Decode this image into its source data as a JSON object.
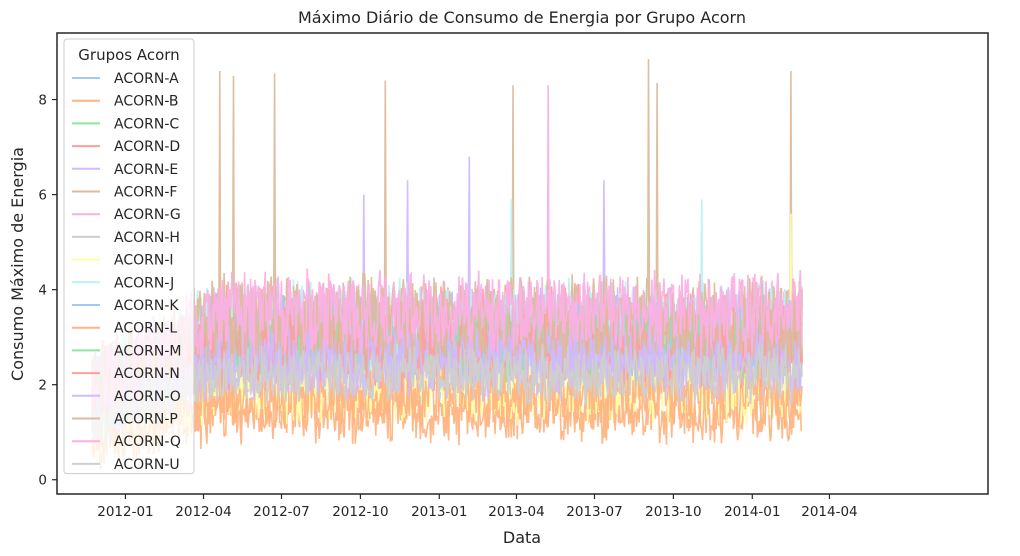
{
  "chart_data": {
    "type": "line",
    "title": "Máximo Diário de Consumo de Energia por Grupo Acorn",
    "xlabel": "Data",
    "ylabel": "Consumo Máximo de Energia",
    "x_range": [
      "2011-11-23",
      "2014-02-28"
    ],
    "ylim": [
      -0.3,
      9.4
    ],
    "x_ticks": [
      "2012-01",
      "2012-04",
      "2012-07",
      "2012-10",
      "2013-01",
      "2013-04",
      "2013-07",
      "2013-10",
      "2014-01",
      "2014-04"
    ],
    "y_ticks": [
      0,
      2,
      4,
      6,
      8
    ],
    "grid": false,
    "legend": {
      "title": "Grupos Acorn",
      "placement": "top-left"
    },
    "series": [
      {
        "name": "ACORN-A",
        "color": "#a1c9f4",
        "base": 2.9,
        "amp": 0.9,
        "peaks": []
      },
      {
        "name": "ACORN-B",
        "color": "#ffb482",
        "base": 1.4,
        "amp": 0.5,
        "peaks": []
      },
      {
        "name": "ACORN-C",
        "color": "#8de5a1",
        "base": 3.0,
        "amp": 0.8,
        "peaks": []
      },
      {
        "name": "ACORN-D",
        "color": "#ff9f9b",
        "base": 3.1,
        "amp": 0.9,
        "peaks": []
      },
      {
        "name": "ACORN-E",
        "color": "#d0bbff",
        "base": 2.9,
        "amp": 1.0,
        "peaks": [
          [
            "2012-10-05",
            6.0
          ],
          [
            "2012-11-25",
            6.3
          ],
          [
            "2013-02-05",
            6.8
          ],
          [
            "2013-07-12",
            6.3
          ]
        ]
      },
      {
        "name": "ACORN-F",
        "color": "#debb9b",
        "base": 3.0,
        "amp": 0.8,
        "peaks": [
          [
            "2012-04-20",
            8.6
          ],
          [
            "2012-05-06",
            8.5
          ],
          [
            "2012-06-23",
            8.55
          ],
          [
            "2012-10-30",
            8.4
          ],
          [
            "2013-03-28",
            8.3
          ],
          [
            "2013-09-02",
            8.85
          ],
          [
            "2013-09-12",
            8.35
          ],
          [
            "2014-02-15",
            8.6
          ]
        ]
      },
      {
        "name": "ACORN-G",
        "color": "#fab0e4",
        "base": 3.2,
        "amp": 0.9,
        "peaks": [
          [
            "2013-05-08",
            8.3
          ]
        ]
      },
      {
        "name": "ACORN-H",
        "color": "#cfcfcf",
        "base": 2.3,
        "amp": 0.6,
        "peaks": []
      },
      {
        "name": "ACORN-I",
        "color": "#fffea3",
        "base": 1.9,
        "amp": 0.6,
        "peaks": [
          [
            "2014-02-15",
            5.6
          ]
        ]
      },
      {
        "name": "ACORN-J",
        "color": "#b9f2f0",
        "base": 3.2,
        "amp": 0.9,
        "peaks": [
          [
            "2013-03-26",
            5.9
          ],
          [
            "2013-11-03",
            5.9
          ]
        ]
      },
      {
        "name": "ACORN-K",
        "color": "#a1c9f4",
        "base": 3.0,
        "amp": 0.8,
        "peaks": []
      },
      {
        "name": "ACORN-L",
        "color": "#ffb482",
        "base": 1.8,
        "amp": 0.6,
        "peaks": []
      },
      {
        "name": "ACORN-M",
        "color": "#8de5a1",
        "base": 2.9,
        "amp": 0.7,
        "peaks": []
      },
      {
        "name": "ACORN-N",
        "color": "#ff9f9b",
        "base": 2.8,
        "amp": 0.8,
        "peaks": []
      },
      {
        "name": "ACORN-O",
        "color": "#d0bbff",
        "base": 2.5,
        "amp": 0.7,
        "peaks": []
      },
      {
        "name": "ACORN-P",
        "color": "#debb9b",
        "base": 3.4,
        "amp": 0.8,
        "peaks": []
      },
      {
        "name": "ACORN-Q",
        "color": "#fab0e4",
        "base": 3.5,
        "amp": 0.8,
        "peaks": []
      },
      {
        "name": "ACORN-U",
        "color": "#cfcfcf",
        "base": 2.2,
        "amp": 0.5,
        "peaks": []
      }
    ]
  }
}
